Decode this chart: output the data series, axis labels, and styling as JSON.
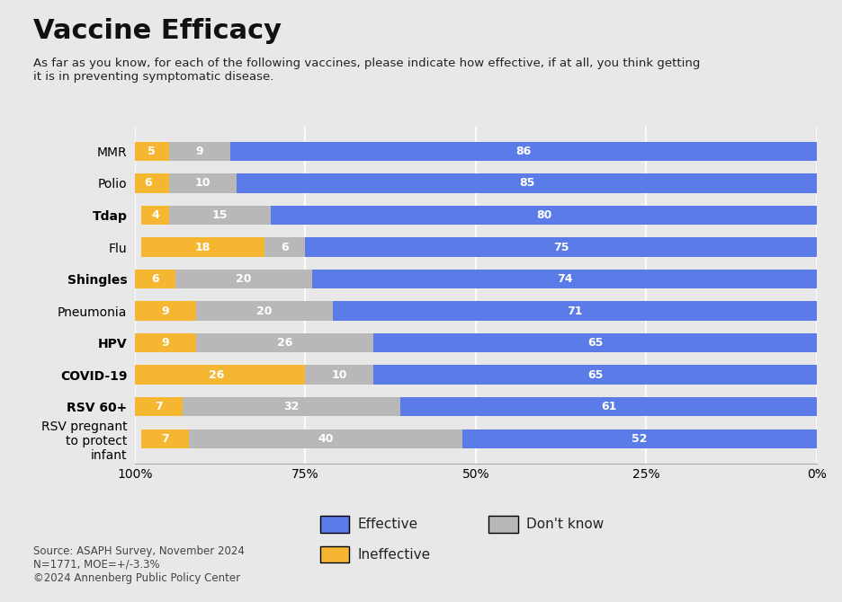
{
  "title": "Vaccine Efficacy",
  "subtitle": "As far as you know, for each of the following vaccines, please indicate how effective, if at all, you think getting\nit is in preventing symptomatic disease.",
  "categories": [
    "MMR",
    "Polio",
    "Tdap",
    "Flu",
    "Shingles",
    "Pneumonia",
    "HPV",
    "COVID-19",
    "RSV 60+",
    "RSV pregnant\nto protect\ninfant"
  ],
  "effective": [
    86,
    85,
    80,
    75,
    74,
    71,
    65,
    65,
    61,
    52
  ],
  "dont_know": [
    9,
    10,
    15,
    6,
    20,
    20,
    26,
    10,
    32,
    40
  ],
  "ineffective": [
    5,
    6,
    4,
    18,
    6,
    9,
    9,
    26,
    7,
    7
  ],
  "color_effective": "#5b7be8",
  "color_dont_know": "#b8b8b8",
  "color_ineffective": "#f5b731",
  "background_color": "#e8e8e8",
  "source_text": "Source: ASAPH Survey, November 2024\nN=1771, MOE=+/-3.3%\n©2024 Annenberg Public Policy Center",
  "legend_labels": [
    "Effective",
    "Don't know",
    "Ineffective"
  ],
  "xtick_labels": [
    "100%",
    "75%",
    "50%",
    "25%",
    "0%"
  ],
  "xtick_values": [
    100,
    75,
    50,
    25,
    0
  ]
}
